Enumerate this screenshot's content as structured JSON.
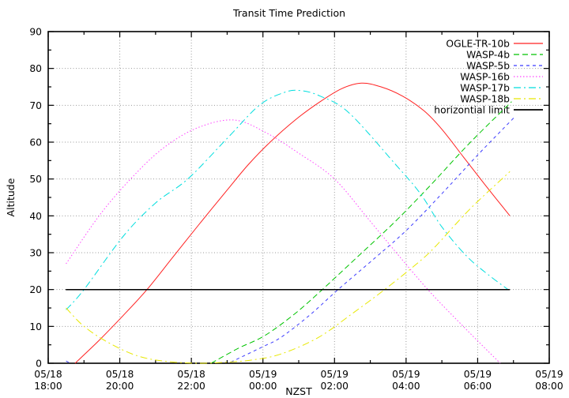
{
  "chart_data": {
    "type": "line",
    "title": "Transit Time Prediction",
    "xlabel": "NZST",
    "ylabel": "Altitude",
    "ylim": [
      0,
      90
    ],
    "x_range_hours": [
      0,
      14
    ],
    "grid": true,
    "legend_position": "top-right",
    "x_ticks": [
      {
        "date": "05/18",
        "time": "18:00"
      },
      {
        "date": "05/18",
        "time": "20:00"
      },
      {
        "date": "05/18",
        "time": "22:00"
      },
      {
        "date": "05/19",
        "time": "00:00"
      },
      {
        "date": "05/19",
        "time": "02:00"
      },
      {
        "date": "05/19",
        "time": "04:00"
      },
      {
        "date": "05/19",
        "time": "06:00"
      },
      {
        "date": "05/19",
        "time": "08:00"
      }
    ],
    "y_ticks": [
      0,
      10,
      20,
      30,
      40,
      50,
      60,
      70,
      80,
      90
    ],
    "series": [
      {
        "name": "OGLE-TR-10b",
        "color": "#ff2222",
        "dash": "",
        "width": 1,
        "segments": [
          [
            [
              0.75,
              0
            ],
            [
              1.4,
              6
            ],
            [
              2.1,
              13
            ],
            [
              2.76,
              20
            ],
            [
              3.5,
              29
            ],
            [
              4.2,
              37.5
            ],
            [
              5.0,
              47
            ],
            [
              5.6,
              54
            ],
            [
              6.2,
              60
            ],
            [
              6.9,
              66
            ],
            [
              7.6,
              71
            ],
            [
              8.2,
              74.5
            ],
            [
              8.75,
              76
            ],
            [
              9.3,
              75
            ],
            [
              9.9,
              72.5
            ],
            [
              10.5,
              68.5
            ],
            [
              11.0,
              63.5
            ],
            [
              11.6,
              56
            ],
            [
              12.2,
              48.5
            ],
            [
              12.9,
              40
            ]
          ]
        ]
      },
      {
        "name": "WASP-4b",
        "color": "#00c400",
        "dash": "7,4",
        "width": 1,
        "segments": [
          [
            [
              4.55,
              0
            ],
            [
              5.3,
              4
            ],
            [
              6.05,
              7.5
            ],
            [
              6.9,
              13.5
            ],
            [
              7.66,
              20
            ],
            [
              8.6,
              28.5
            ],
            [
              9.7,
              38.5
            ],
            [
              10.7,
              48.5
            ],
            [
              11.8,
              60
            ],
            [
              12.95,
              71
            ]
          ]
        ]
      },
      {
        "name": "WASP-5b",
        "color": "#3c3cff",
        "dash": "4,4",
        "width": 1,
        "segments": [
          [
            [
              0.5,
              0.6
            ],
            [
              0.62,
              0
            ]
          ],
          [
            [
              5.1,
              0.3
            ],
            [
              6.0,
              4.5
            ],
            [
              6.5,
              7
            ],
            [
              7.3,
              13
            ],
            [
              8.1,
              20
            ],
            [
              9.0,
              27.5
            ],
            [
              10.0,
              36
            ],
            [
              11.0,
              46
            ],
            [
              12.0,
              56.5
            ],
            [
              13.05,
              67
            ]
          ]
        ]
      },
      {
        "name": "WASP-16b",
        "color": "#ff44ff",
        "dash": "1.5,2.5",
        "width": 1,
        "segments": [
          [
            [
              0.5,
              27
            ],
            [
              1.5,
              41
            ],
            [
              2.5,
              52
            ],
            [
              3.3,
              59
            ],
            [
              4.2,
              64
            ],
            [
              5.2,
              66
            ],
            [
              6.1,
              62.5
            ],
            [
              7.0,
              57
            ],
            [
              8.0,
              50
            ],
            [
              9.0,
              38.5
            ],
            [
              9.9,
              28
            ],
            [
              10.7,
              19
            ],
            [
              11.7,
              9
            ],
            [
              12.63,
              0
            ]
          ]
        ]
      },
      {
        "name": "WASP-17b",
        "color": "#00dede",
        "dash": "9,4,2,4",
        "width": 1,
        "segments": [
          [
            [
              0.5,
              14.5
            ],
            [
              1.0,
              20
            ],
            [
              2.1,
              34.5
            ],
            [
              3.0,
              43.5
            ],
            [
              3.9,
              50
            ],
            [
              5.0,
              61
            ],
            [
              5.9,
              70
            ],
            [
              6.6,
              73.5
            ],
            [
              7.05,
              74
            ],
            [
              7.6,
              72.5
            ],
            [
              8.4,
              68
            ],
            [
              9.7,
              54
            ],
            [
              10.4,
              46
            ],
            [
              11.0,
              37
            ],
            [
              11.7,
              29
            ],
            [
              12.3,
              24
            ],
            [
              12.85,
              20
            ]
          ]
        ]
      },
      {
        "name": "WASP-18b",
        "color": "#e8e800",
        "dash": "9,4,2,4",
        "width": 1,
        "segments": [
          [
            [
              0.5,
              15
            ],
            [
              1.0,
              10
            ],
            [
              1.7,
              5.5
            ],
            [
              2.5,
              2
            ],
            [
              3.3,
              0.5
            ],
            [
              4.2,
              0
            ],
            [
              5.0,
              0.3
            ],
            [
              5.7,
              0.9
            ],
            [
              6.5,
              2.5
            ],
            [
              7.55,
              7
            ],
            [
              8.5,
              13.5
            ],
            [
              9.4,
              20
            ],
            [
              10.3,
              27
            ],
            [
              10.8,
              31.5
            ],
            [
              11.8,
              42
            ],
            [
              12.9,
              52
            ]
          ]
        ]
      },
      {
        "name": "horizontial limit",
        "color": "#000000",
        "dash": "",
        "width": 1.5,
        "segments": [
          [
            [
              0.49,
              20
            ],
            [
              12.9,
              20
            ]
          ]
        ]
      }
    ]
  }
}
